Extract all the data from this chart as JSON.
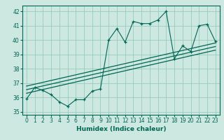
{
  "xlabel": "Humidex (Indice chaleur)",
  "ylabel": "",
  "bg_color": "#cce8e0",
  "grid_color": "#99ccbb",
  "line_color": "#006655",
  "xlim": [
    -0.5,
    23.5
  ],
  "ylim": [
    34.8,
    42.4
  ],
  "yticks": [
    35,
    36,
    37,
    38,
    39,
    40,
    41,
    42
  ],
  "xticks": [
    0,
    1,
    2,
    3,
    4,
    5,
    6,
    7,
    8,
    9,
    10,
    11,
    12,
    13,
    14,
    15,
    16,
    17,
    18,
    19,
    20,
    21,
    22,
    23
  ],
  "data_x": [
    0,
    1,
    2,
    3,
    4,
    5,
    6,
    7,
    8,
    9,
    10,
    11,
    12,
    13,
    14,
    15,
    16,
    17,
    18,
    19,
    20,
    21,
    22,
    23
  ],
  "data_y": [
    35.9,
    36.7,
    36.5,
    36.2,
    35.7,
    35.4,
    35.85,
    35.85,
    36.45,
    36.6,
    40.0,
    40.8,
    39.85,
    41.3,
    41.15,
    41.15,
    41.4,
    42.0,
    38.7,
    39.6,
    39.2,
    41.0,
    41.1,
    39.9
  ],
  "trend_lines": [
    {
      "x0": 0,
      "y0": 36.3,
      "x1": 23,
      "y1": 39.3
    },
    {
      "x0": 0,
      "y0": 36.55,
      "x1": 23,
      "y1": 39.55
    },
    {
      "x0": 0,
      "y0": 36.8,
      "x1": 23,
      "y1": 39.8
    }
  ]
}
